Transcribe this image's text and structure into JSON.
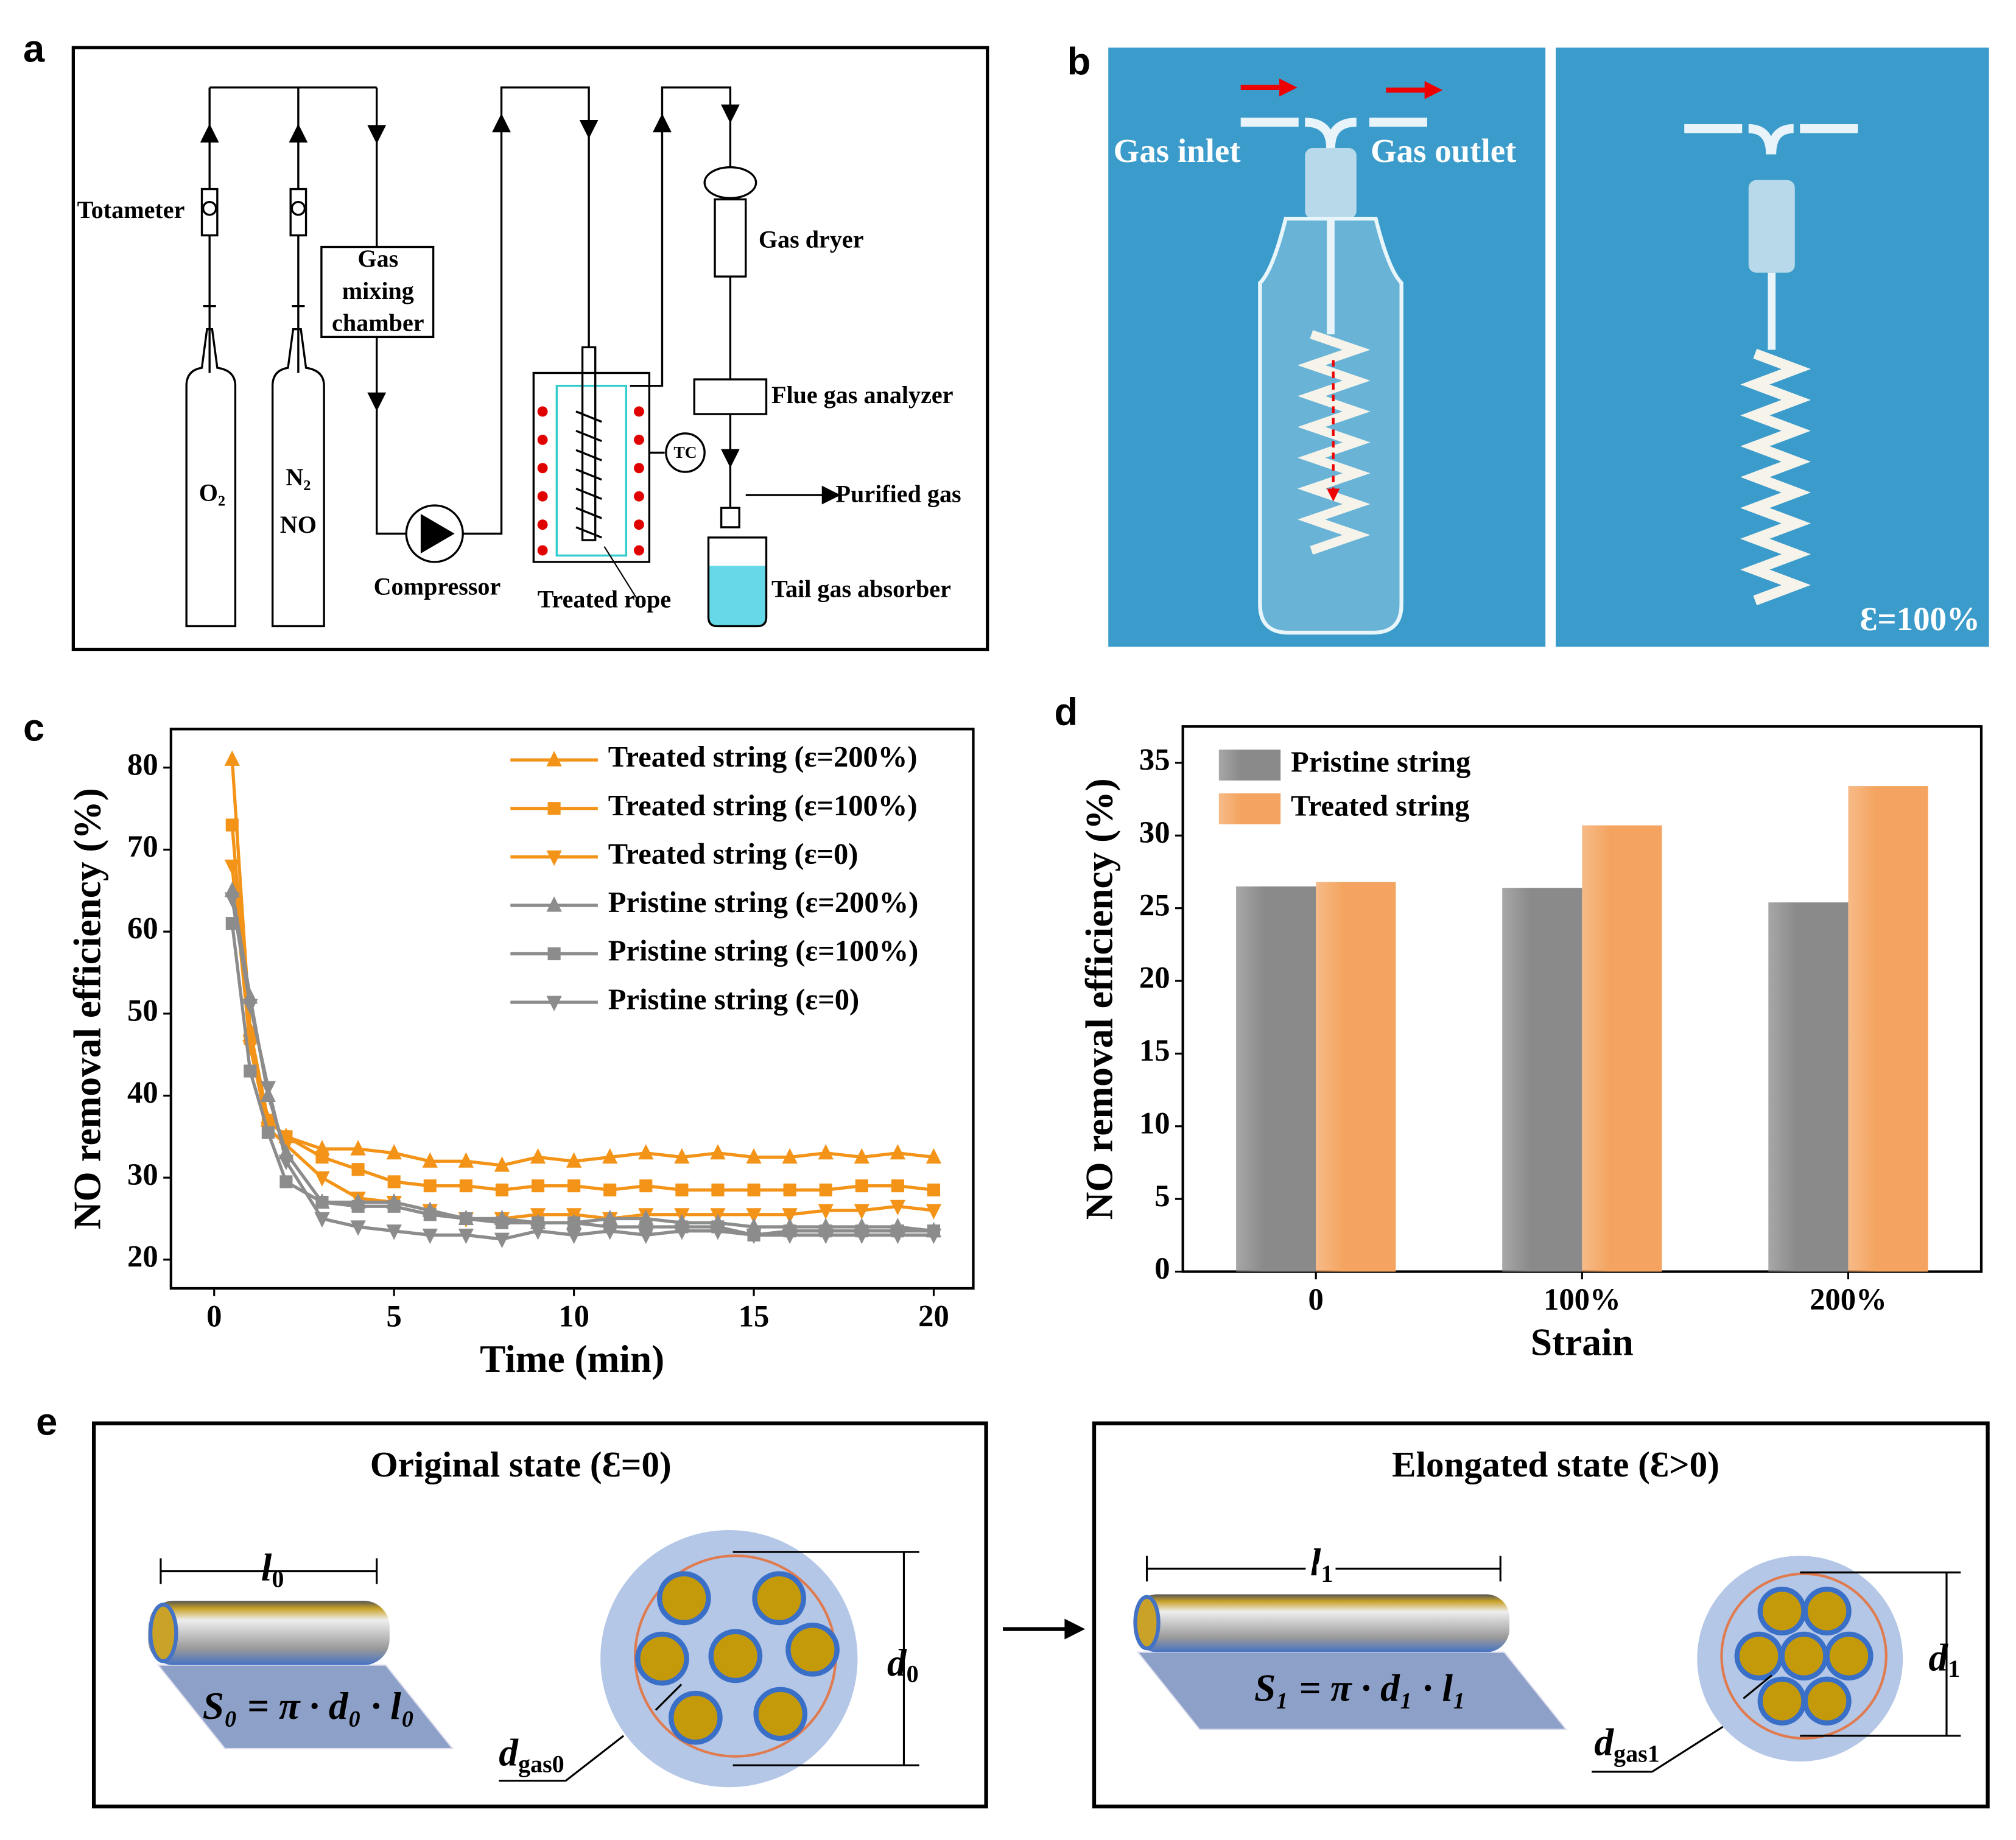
{
  "panel_labels": [
    "a",
    "b",
    "c",
    "d",
    "e"
  ],
  "diagram_a": {
    "totameter": "Totameter",
    "gas_mixing_chamber": [
      "Gas",
      "mixing",
      "chamber"
    ],
    "o2": "O₂",
    "n2": "N₂",
    "no": "NO",
    "compressor": "Compressor",
    "treated_rope": "Treated rope",
    "tc": "TC",
    "gas_dryer": "Gas dryer",
    "flue_gas_analyzer": "Flue gas analyzer",
    "purified_gas": "Purified gas",
    "tail_gas_absorber": "Tail gas absorber"
  },
  "photo_b": {
    "gas_inlet": "Gas inlet",
    "gas_outlet": "Gas outlet",
    "strain_label": "Ɛ=100%"
  },
  "chart_data": [
    {
      "type": "line",
      "xlabel": "Time (min)",
      "ylabel": "NO removal efficiency (%)",
      "x": [
        0.5,
        1,
        1.5,
        2,
        3,
        4,
        5,
        6,
        7,
        8,
        9,
        10,
        11,
        12,
        13,
        14,
        15,
        16,
        17,
        18,
        19,
        20
      ],
      "series": [
        {
          "name": "Treated string (ε=200%)",
          "color": "#f39419",
          "marker": "triangle-up",
          "values": [
            81,
            48,
            37,
            35,
            33.5,
            33.5,
            33,
            32,
            32,
            31.5,
            32.5,
            32,
            32.5,
            33,
            32.5,
            33,
            32.5,
            32.5,
            33,
            32.5,
            33,
            32.5
          ]
        },
        {
          "name": "Treated string (ε=100%)",
          "color": "#f39419",
          "marker": "square",
          "values": [
            73,
            47,
            37,
            35,
            32.5,
            31,
            29.5,
            29,
            29,
            28.5,
            29,
            29,
            28.5,
            29,
            28.5,
            28.5,
            28.5,
            28.5,
            28.5,
            29,
            29,
            28.5
          ]
        },
        {
          "name": "Treated string (ε=0)",
          "color": "#f39419",
          "marker": "triangle-down",
          "values": [
            68,
            46,
            36,
            34,
            30,
            27.5,
            27,
            26,
            25,
            25,
            25.5,
            25.5,
            25,
            25.5,
            25.5,
            25.5,
            25.5,
            25.5,
            26,
            26,
            26.5,
            26
          ]
        },
        {
          "name": "Pristine string (ε=200%)",
          "color": "#8c8c8c",
          "marker": "triangle-up",
          "values": [
            65,
            52,
            40,
            33,
            27,
            27,
            27,
            26,
            25,
            25,
            24.5,
            24.5,
            25,
            25,
            24.5,
            24.5,
            24,
            24,
            24,
            24,
            24,
            23.5
          ]
        },
        {
          "name": "Pristine string (ε=100%)",
          "color": "#8c8c8c",
          "marker": "square",
          "values": [
            61,
            43,
            35.5,
            29.5,
            27,
            26.5,
            26.5,
            25.5,
            25,
            24.5,
            24.5,
            24.5,
            24,
            24,
            24,
            24,
            23,
            23.5,
            23.5,
            23.5,
            23.5,
            23.5
          ]
        },
        {
          "name": "Pristine string (ε=0)",
          "color": "#8c8c8c",
          "marker": "triangle-down",
          "values": [
            64,
            51,
            41,
            32,
            25,
            24,
            23.5,
            23,
            23,
            22.5,
            23.5,
            23,
            23.5,
            23,
            23.5,
            23.5,
            23,
            23,
            23,
            23,
            23,
            23
          ]
        }
      ],
      "xlim": [
        -1.2,
        21.1
      ],
      "ylim": [
        16.5,
        84.7
      ],
      "xticks": [
        0,
        5,
        10,
        15,
        20
      ],
      "yticks": [
        20,
        30,
        40,
        50,
        60,
        70,
        80
      ],
      "legend": "upper right"
    },
    {
      "type": "bar",
      "xlabel": "Strain",
      "ylabel": "NO removal efficiency (%)",
      "categories": [
        "0",
        "100%",
        "200%"
      ],
      "series": [
        {
          "name": "Pristine string",
          "color": "#8a8a8a",
          "values": [
            26.5,
            26.4,
            25.4
          ]
        },
        {
          "name": "Treated string",
          "color": "#f4a460",
          "values": [
            26.8,
            30.7,
            33.4
          ]
        }
      ],
      "ylim": [
        0,
        37.5
      ],
      "yticks": [
        0,
        5,
        10,
        15,
        20,
        25,
        30,
        35
      ],
      "legend": "upper left"
    }
  ],
  "diagram_e": {
    "original": {
      "title": "Original state (Ɛ=0)",
      "length": {
        "main": "l",
        "sub": "0"
      },
      "diameter": {
        "main": "d",
        "sub": "0"
      },
      "area": "S₀ = π · d₀ · l₀",
      "gas_diameter": {
        "main": "d",
        "sub": "gas0"
      }
    },
    "elongated": {
      "title": "Elongated state (Ɛ>0)",
      "length": {
        "main": "l",
        "sub": "1"
      },
      "diameter": {
        "main": "d",
        "sub": "1"
      },
      "area": "S₁ = π · d₁ · l₁",
      "gas_diameter": {
        "main": "d",
        "sub": "gas1"
      }
    }
  }
}
